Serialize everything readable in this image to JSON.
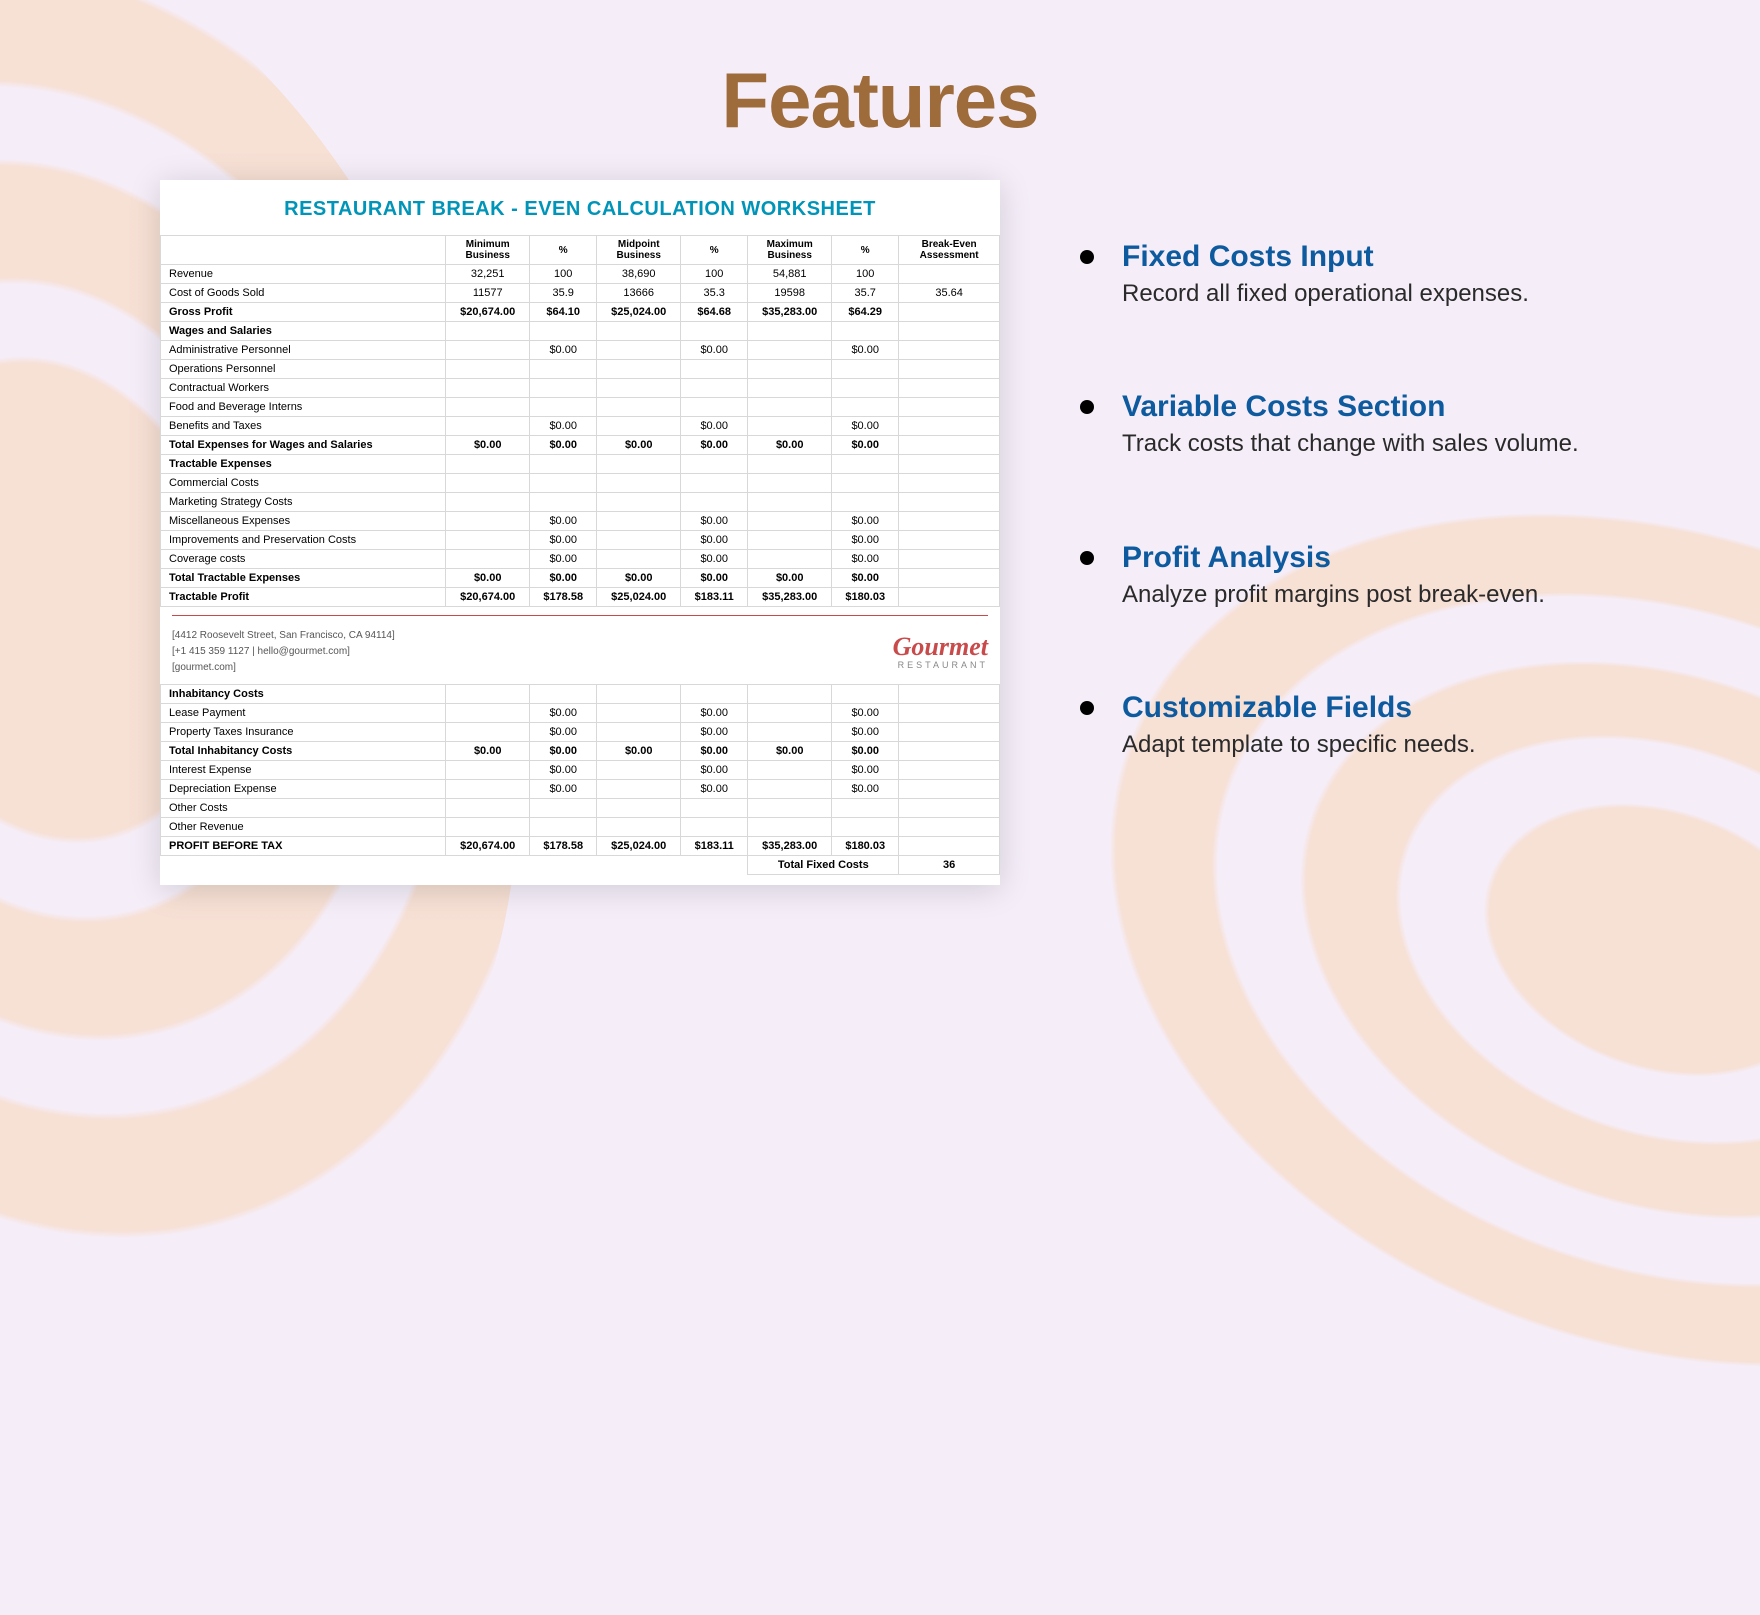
{
  "page": {
    "title": "Features",
    "title_color": "#9e6b3a",
    "background_color": "#f5eef9",
    "swirl_color": "#f8d6bc"
  },
  "worksheet": {
    "title": "RESTAURANT BREAK - EVEN CALCULATION WORKSHEET",
    "title_color": "#0095b8",
    "columns": [
      "",
      "Minimum Business",
      "%",
      "Midpoint Business",
      "%",
      "Maximum Business",
      "%",
      "Break-Even Assessment"
    ],
    "col_widths_pct": [
      34,
      10,
      8,
      10,
      8,
      10,
      8,
      12
    ],
    "rows": [
      {
        "label": "Revenue",
        "vals": [
          "32,251",
          "100",
          "38,690",
          "100",
          "54,881",
          "100",
          ""
        ]
      },
      {
        "label": "Cost of Goods Sold",
        "vals": [
          "11577",
          "35.9",
          "13666",
          "35.3",
          "19598",
          "35.7",
          "35.64"
        ]
      },
      {
        "label": "Gross Profit",
        "bold": true,
        "vals": [
          "$20,674.00",
          "$64.10",
          "$25,024.00",
          "$64.68",
          "$35,283.00",
          "$64.29",
          ""
        ]
      },
      {
        "label": "Wages and Salaries",
        "section": true,
        "vals": [
          "",
          "",
          "",
          "",
          "",
          "",
          ""
        ]
      },
      {
        "label": "Administrative Personnel",
        "vals": [
          "",
          "$0.00",
          "",
          "$0.00",
          "",
          "$0.00",
          ""
        ]
      },
      {
        "label": "Operations Personnel",
        "vals": [
          "",
          "",
          "",
          "",
          "",
          "",
          ""
        ]
      },
      {
        "label": "Contractual Workers",
        "vals": [
          "",
          "",
          "",
          "",
          "",
          "",
          ""
        ]
      },
      {
        "label": "Food and Beverage Interns",
        "vals": [
          "",
          "",
          "",
          "",
          "",
          "",
          ""
        ]
      },
      {
        "label": "Benefits and Taxes",
        "vals": [
          "",
          "$0.00",
          "",
          "$0.00",
          "",
          "$0.00",
          ""
        ]
      },
      {
        "label": "Total Expenses for Wages and Salaries",
        "bold": true,
        "vals": [
          "$0.00",
          "$0.00",
          "$0.00",
          "$0.00",
          "$0.00",
          "$0.00",
          ""
        ]
      },
      {
        "label": "Tractable Expenses",
        "section": true,
        "vals": [
          "",
          "",
          "",
          "",
          "",
          "",
          ""
        ]
      },
      {
        "label": "Commercial Costs",
        "vals": [
          "",
          "",
          "",
          "",
          "",
          "",
          ""
        ]
      },
      {
        "label": "Marketing Strategy Costs",
        "vals": [
          "",
          "",
          "",
          "",
          "",
          "",
          ""
        ]
      },
      {
        "label": "Miscellaneous Expenses",
        "vals": [
          "",
          "$0.00",
          "",
          "$0.00",
          "",
          "$0.00",
          ""
        ]
      },
      {
        "label": "Improvements and Preservation Costs",
        "vals": [
          "",
          "$0.00",
          "",
          "$0.00",
          "",
          "$0.00",
          ""
        ]
      },
      {
        "label": "Coverage costs",
        "vals": [
          "",
          "$0.00",
          "",
          "$0.00",
          "",
          "$0.00",
          ""
        ]
      },
      {
        "label": "Total Tractable Expenses",
        "bold": true,
        "vals": [
          "$0.00",
          "$0.00",
          "$0.00",
          "$0.00",
          "$0.00",
          "$0.00",
          ""
        ]
      },
      {
        "label": "Tractable Profit",
        "bold": true,
        "vals": [
          "$20,674.00",
          "$178.58",
          "$25,024.00",
          "$183.11",
          "$35,283.00",
          "$180.03",
          ""
        ]
      }
    ],
    "footer": {
      "address": "[4412 Roosevelt Street, San Francisco, CA 94114]",
      "phone_email": "[+1 415 359 1127 | hello@gourmet.com]",
      "website": "[gourmet.com]",
      "logo_main": "Gourmet",
      "logo_sub": "RESTAURANT",
      "logo_color": "#c94a4a"
    },
    "rows2": [
      {
        "label": "Inhabitancy Costs",
        "section": true,
        "vals": [
          "",
          "",
          "",
          "",
          "",
          "",
          ""
        ]
      },
      {
        "label": "Lease Payment",
        "vals": [
          "",
          "$0.00",
          "",
          "$0.00",
          "",
          "$0.00",
          ""
        ]
      },
      {
        "label": "Property Taxes Insurance",
        "vals": [
          "",
          "$0.00",
          "",
          "$0.00",
          "",
          "$0.00",
          ""
        ]
      },
      {
        "label": "Total Inhabitancy Costs",
        "bold": true,
        "vals": [
          "$0.00",
          "$0.00",
          "$0.00",
          "$0.00",
          "$0.00",
          "$0.00",
          ""
        ]
      },
      {
        "label": "Interest Expense",
        "vals": [
          "",
          "$0.00",
          "",
          "$0.00",
          "",
          "$0.00",
          ""
        ]
      },
      {
        "label": "Depreciation Expense",
        "vals": [
          "",
          "$0.00",
          "",
          "$0.00",
          "",
          "$0.00",
          ""
        ]
      },
      {
        "label": "Other Costs",
        "vals": [
          "",
          "",
          "",
          "",
          "",
          "",
          ""
        ]
      },
      {
        "label": "Other Revenue",
        "vals": [
          "",
          "",
          "",
          "",
          "",
          "",
          ""
        ]
      },
      {
        "label": "PROFIT BEFORE TAX",
        "bold": true,
        "vals": [
          "$20,674.00",
          "$178.58",
          "$25,024.00",
          "$183.11",
          "$35,283.00",
          "$180.03",
          ""
        ]
      }
    ],
    "total_fixed_label": "Total Fixed Costs",
    "total_fixed_value": "36"
  },
  "features": [
    {
      "title": "Fixed Costs Input",
      "desc": "Record all fixed operational expenses."
    },
    {
      "title": "Variable Costs Section",
      "desc": "Track costs that change with sales volume."
    },
    {
      "title": "Profit Analysis",
      "desc": "Analyze profit margins post break-even."
    },
    {
      "title": "Customizable Fields",
      "desc": "Adapt template to specific needs."
    }
  ],
  "feature_style": {
    "title_color": "#0d5a9e",
    "title_fontsize": 30,
    "desc_color": "#2a2a2a",
    "desc_fontsize": 24
  }
}
